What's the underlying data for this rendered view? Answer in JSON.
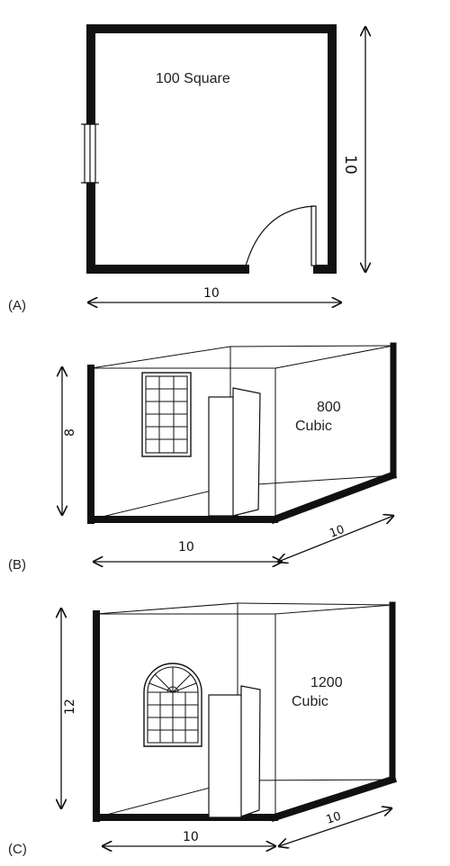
{
  "panels": {
    "a": {
      "tag": "(A)",
      "area_label": "100 Square",
      "width_label": "10",
      "depth_label": "10"
    },
    "b": {
      "tag": "(B)",
      "volume_number": "800",
      "volume_unit": "Cubic",
      "height_label": "8",
      "width_label": "10",
      "depth_label": "10"
    },
    "c": {
      "tag": "(C)",
      "volume_number": "1200",
      "volume_unit": "Cubic",
      "height_label": "12",
      "width_label": "10",
      "depth_label": "10"
    }
  },
  "colors": {
    "ink": "#111111",
    "paper": "#ffffff"
  }
}
